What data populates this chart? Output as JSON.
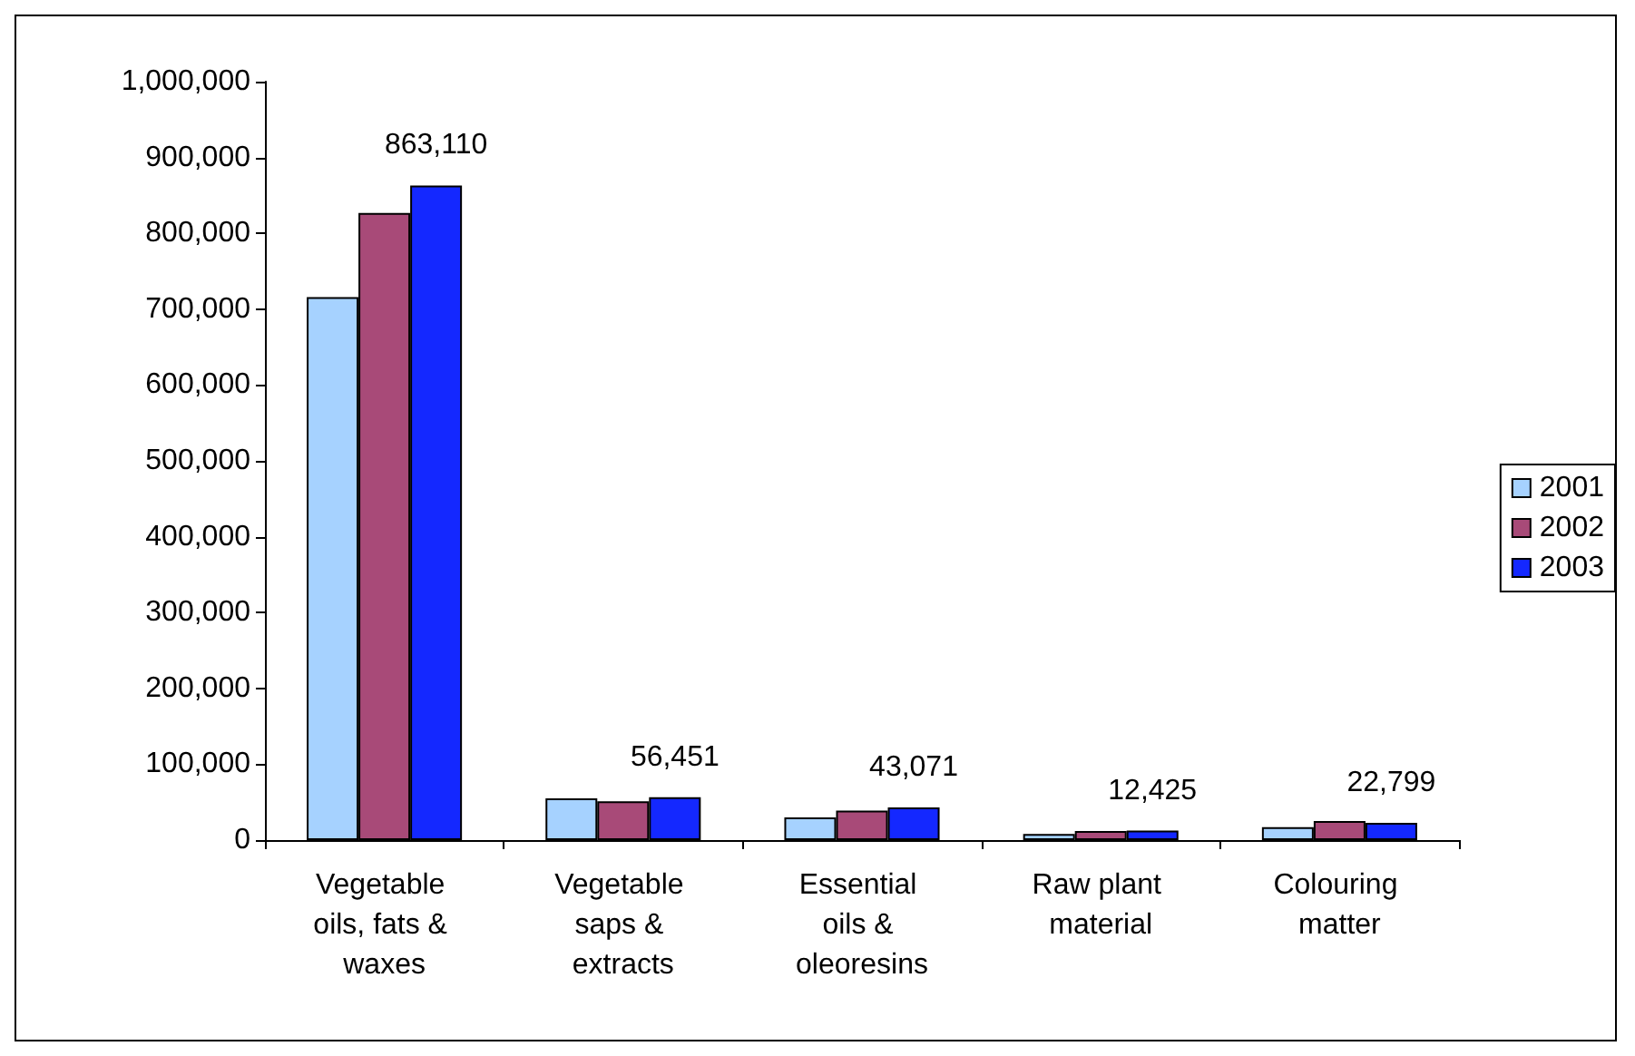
{
  "chart_data": {
    "type": "bar",
    "categories": [
      "Vegetable oils, fats & waxes",
      "Vegetable saps & extracts",
      "Essential oils & oleoresins",
      "Raw plant material",
      "Colouring matter"
    ],
    "series": [
      {
        "name": "2001",
        "color": "#a6d2ff",
        "values": [
          716000,
          55000,
          30000,
          8000,
          17000
        ]
      },
      {
        "name": "2002",
        "color": "#a84a78",
        "values": [
          827000,
          51000,
          39000,
          12000,
          25000
        ]
      },
      {
        "name": "2003",
        "color": "#1428ff",
        "values": [
          863110,
          56451,
          43071,
          12425,
          22799
        ],
        "value_labels": [
          "863,110",
          "56,451",
          "43,071",
          "12,425",
          "22,799"
        ]
      }
    ],
    "ylim": [
      0,
      1000000
    ],
    "yticks": [
      0,
      {
        "value": 100000,
        "label": "100,000"
      },
      {
        "value": 200000,
        "label": "200,000"
      },
      {
        "value": 300000,
        "label": "300,000"
      },
      {
        "value": 400000,
        "label": "400,000"
      },
      {
        "value": 500000,
        "label": "500,000"
      },
      {
        "value": 600000,
        "label": "600,000"
      },
      {
        "value": 700000,
        "label": "700,000"
      },
      {
        "value": 800000,
        "label": "800,000"
      },
      {
        "value": 900000,
        "label": "900,000"
      },
      {
        "value": 1000000,
        "label": "1,000,000"
      }
    ],
    "grid": false,
    "legend": "right"
  }
}
